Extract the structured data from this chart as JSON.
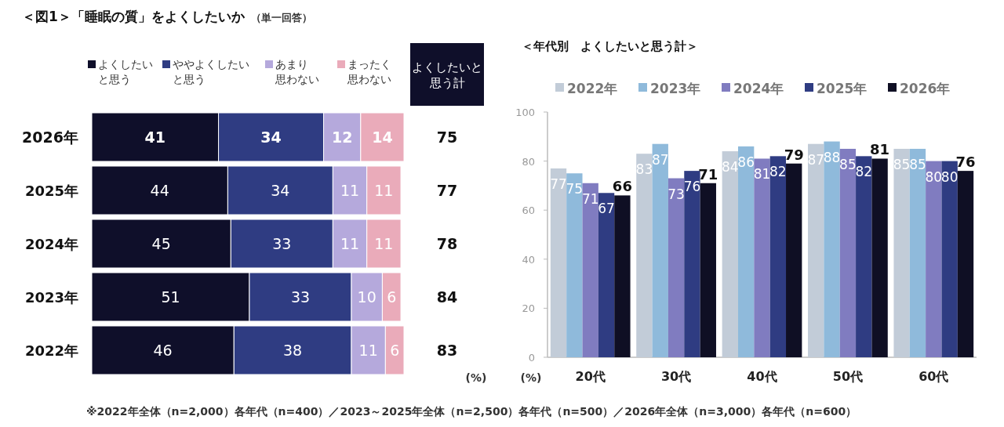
{
  "chart_data": [
    {
      "type": "bar",
      "orientation": "horizontal",
      "stacked": true,
      "title": "＜図1＞「睡眠の質」をよくしたいか",
      "subtitle": "（単一回答）",
      "categories": [
        "2026年",
        "2025年",
        "2024年",
        "2023年",
        "2022年"
      ],
      "legend": "top",
      "data_labels": true,
      "series": [
        {
          "name": "よくしたいと思う",
          "color": "#0f0f2a",
          "values": [
            41,
            44,
            45,
            51,
            46
          ]
        },
        {
          "name": "ややよくしたいと思う",
          "color": "#2f3c82",
          "values": [
            34,
            34,
            33,
            33,
            38
          ]
        },
        {
          "name": "あまり思わない",
          "color": "#b5a9dc",
          "values": [
            12,
            11,
            11,
            10,
            11
          ]
        },
        {
          "name": "まったく思わない",
          "color": "#eaabba",
          "values": [
            14,
            11,
            11,
            6,
            6
          ]
        }
      ],
      "annotations": [
        "よくしたいと思う計",
        "75",
        "77",
        "78",
        "84",
        "83",
        "(%)",
        "※2022年全体（n=2,000）各年代（n=400）／2023～2025年全体（n=2,500）各年代（n=500）／2026年全体（n=3,000）各年代（n=600）"
      ]
    },
    {
      "type": "bar",
      "title": "＜年代別　よくしたいと思う計＞",
      "categories": [
        "20代",
        "30代",
        "40代",
        "50代",
        "60代"
      ],
      "ylim": [
        0,
        100
      ],
      "yticks": [
        0,
        20,
        40,
        60,
        80,
        100
      ],
      "legend": "top",
      "data_labels": true,
      "annotations": [
        "(%)"
      ],
      "series": [
        {
          "name": "2022年",
          "color": "#c2ccd8",
          "values": [
            77,
            83,
            84,
            87,
            85
          ]
        },
        {
          "name": "2023年",
          "color": "#8fbadb",
          "values": [
            75,
            87,
            86,
            88,
            85
          ]
        },
        {
          "name": "2024年",
          "color": "#807cc0",
          "values": [
            71,
            73,
            81,
            85,
            80
          ]
        },
        {
          "name": "2025年",
          "color": "#2f3c82",
          "values": [
            67,
            76,
            82,
            82,
            80
          ]
        },
        {
          "name": "2026年",
          "color": "#0f0f24",
          "values": [
            66,
            71,
            79,
            81,
            76
          ]
        }
      ]
    }
  ]
}
